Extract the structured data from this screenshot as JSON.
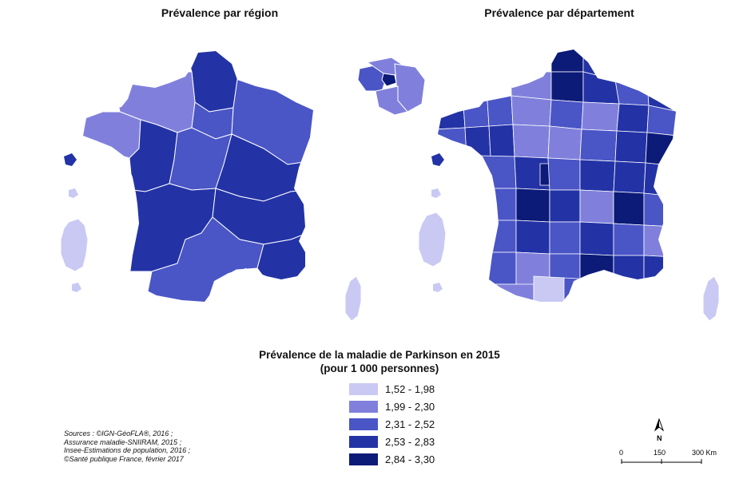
{
  "maps": {
    "left_title": "Prévalence par région",
    "right_title": "Prévalence par département"
  },
  "legend": {
    "title_line1": "Prévalence de la maladie de Parkinson en 2015",
    "title_line2": "(pour 1 000 personnes)",
    "classes": [
      {
        "label": "1,52 - 1,98",
        "color": "#c9c9f4"
      },
      {
        "label": "1,99 - 2,30",
        "color": "#8080dc"
      },
      {
        "label": "2,31 - 2,52",
        "color": "#4a55c6"
      },
      {
        "label": "2,53 - 2,83",
        "color": "#2333a6"
      },
      {
        "label": "2,84 - 3,30",
        "color": "#0c1a78"
      }
    ]
  },
  "sources": {
    "line1": "Sources : ©IGN-GéoFLA®, 2016 ;",
    "line2": "Assurance maladie-SNIIRAM, 2015 ;",
    "line3": "Insee-Estimations de population, 2016 ;",
    "line4": "©Santé publique France, février 2017"
  },
  "scale_bar": {
    "north": "N",
    "ticks": [
      "0",
      "150",
      "300 Km"
    ]
  }
}
